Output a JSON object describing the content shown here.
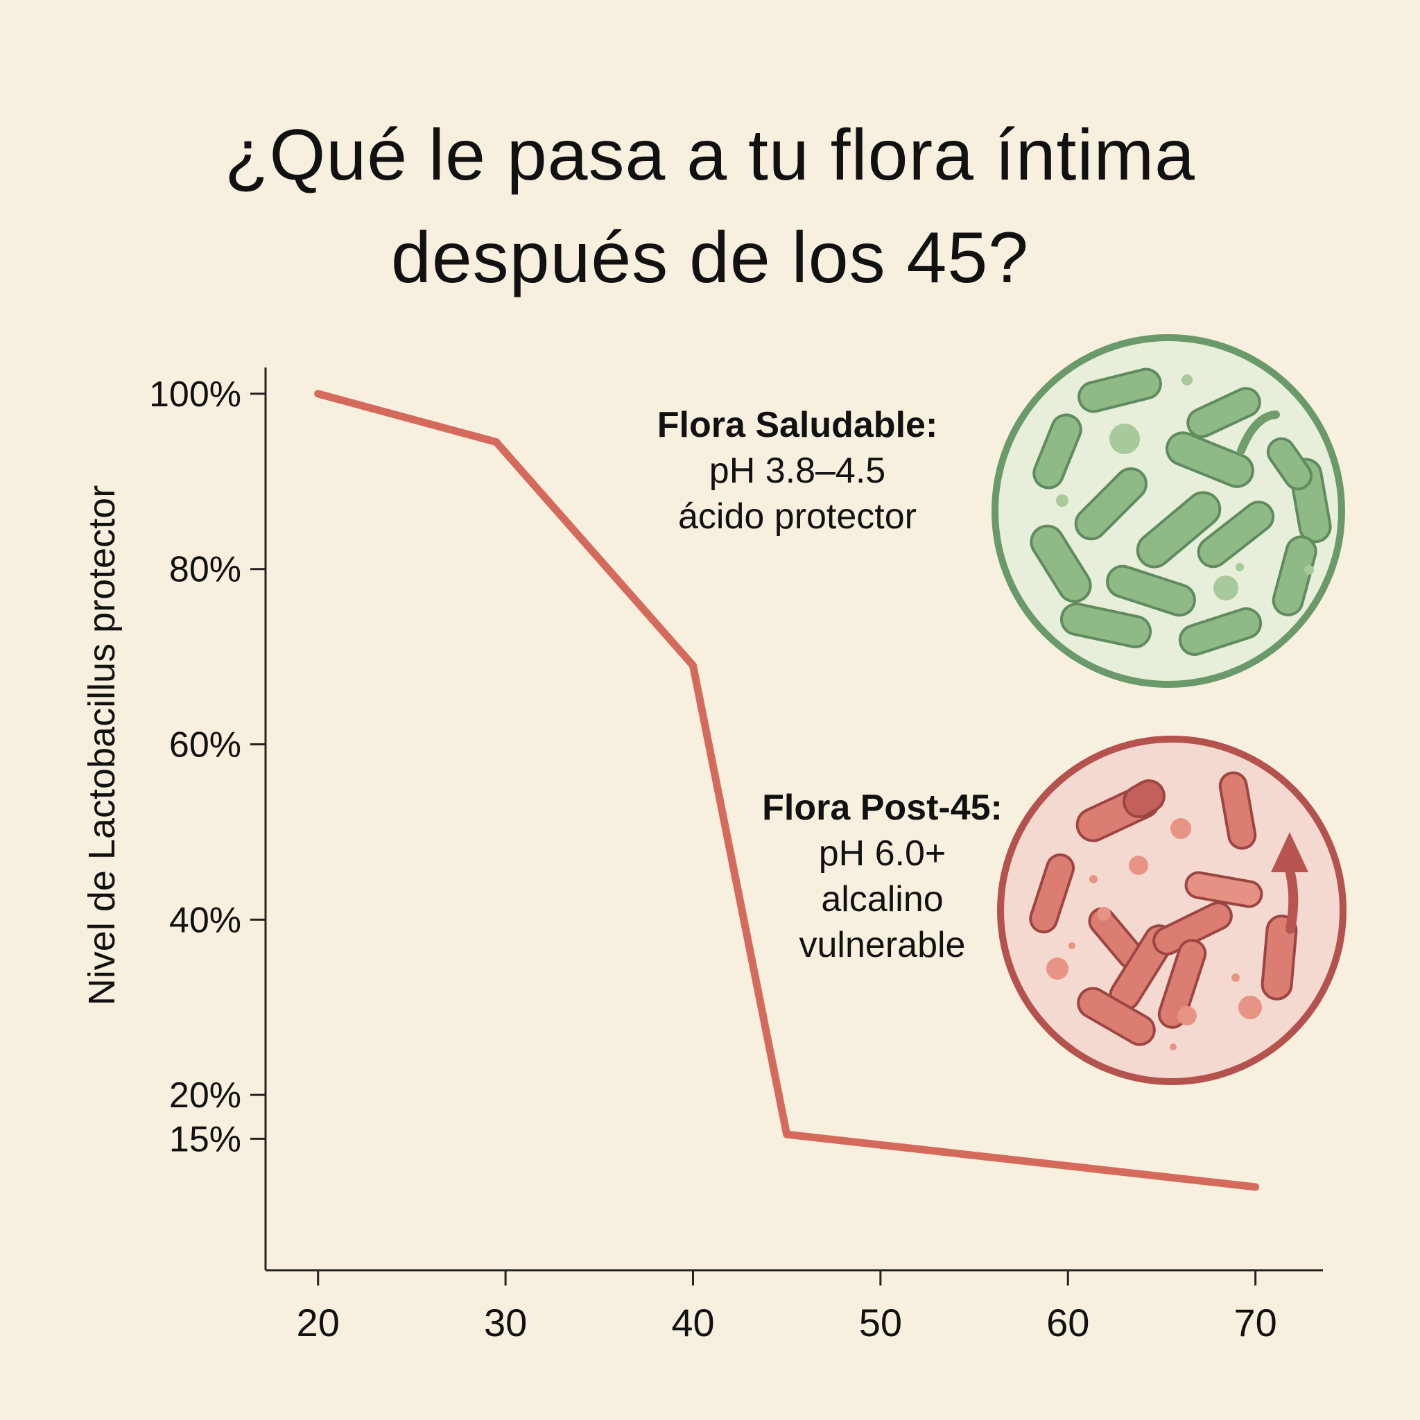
{
  "title": {
    "line1": "¿Qué le pasa a tu flora íntima",
    "line2": "después de los 45?"
  },
  "annotations": {
    "healthy": {
      "heading": "Flora Saludable:",
      "line1": "pH 3.8–4.5",
      "line2": "ácido protector"
    },
    "post45": {
      "heading": "Flora Post-45:",
      "line1": "pH 6.0+",
      "line2": "alcalino",
      "line3": "vulnerable"
    }
  },
  "icons": [
    "healthy-bacteria-icon",
    "post45-bacteria-icon",
    "rising-ph-arrow-icon"
  ],
  "colors": {
    "line": "#d46a5c",
    "healthy": "#6a9a6a",
    "post45": "#b4524e",
    "background": "#f8f0df"
  },
  "chart_data": {
    "type": "line",
    "title": "¿Qué le pasa a tu flora íntima después de los 45?",
    "xlabel": "",
    "ylabel": "Nivel de Lactobacillus protector",
    "x": [
      20,
      29.5,
      40,
      45,
      70
    ],
    "values": [
      100,
      94.5,
      69,
      15.5,
      9.5
    ],
    "xticks": [
      20,
      30,
      40,
      50,
      60,
      70
    ],
    "xtick_labels": [
      "20",
      "30",
      "40",
      "50",
      "60",
      "70"
    ],
    "yticks": [
      100,
      80,
      60,
      40,
      20,
      15
    ],
    "ytick_labels": [
      "100%",
      "80%",
      "60%",
      "40%",
      "20%",
      "15%"
    ],
    "xlim": [
      17.2,
      73.6
    ],
    "ylim": [
      0,
      103
    ],
    "grid": false
  }
}
